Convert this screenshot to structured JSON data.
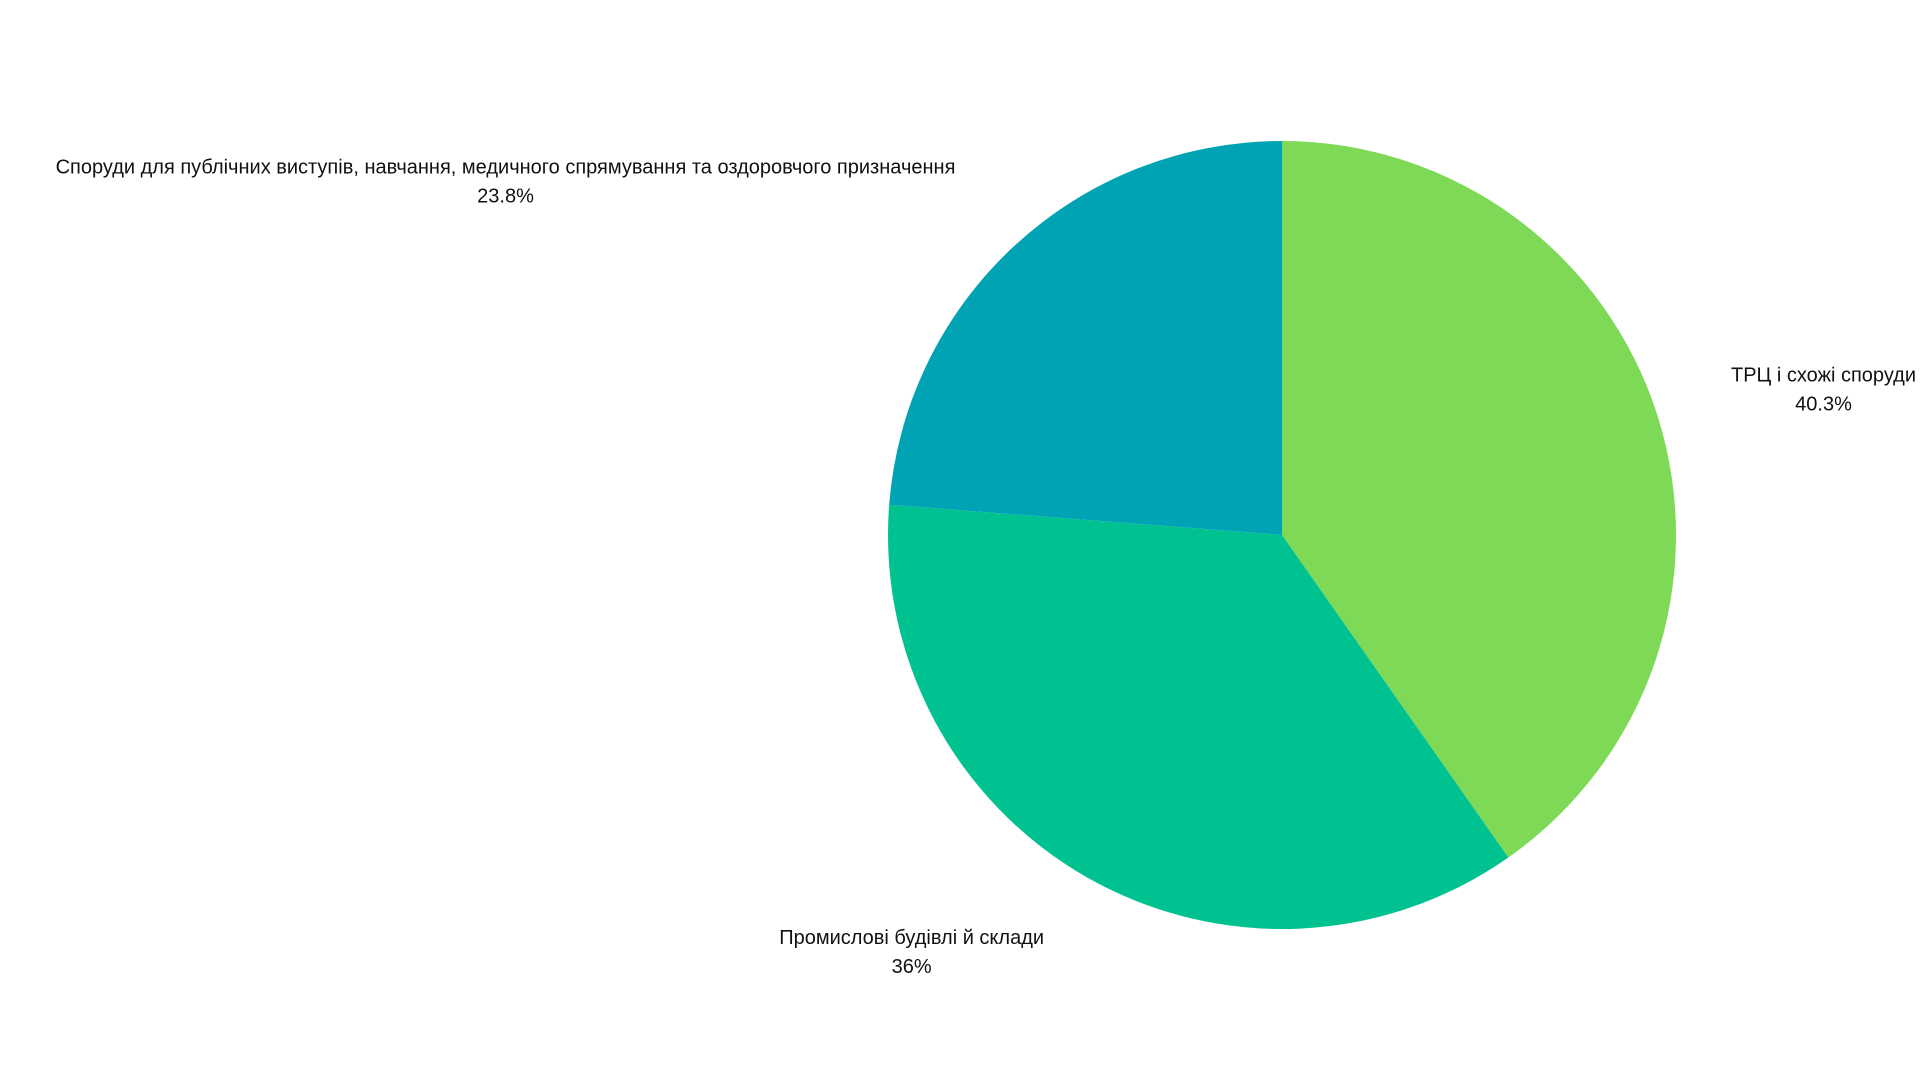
{
  "chart_data": {
    "type": "pie",
    "categories": [
      "ТРЦ і схожі споруди",
      "Промислові будівлі й склади",
      "Споруди для публічних виступів, навчання, медичного спрямування та оздоровчого призначення"
    ],
    "values": [
      40.3,
      36,
      23.8
    ],
    "value_labels": [
      "40.3%",
      "36%",
      "23.8%"
    ],
    "colors": [
      "#7ed957",
      "#00c291",
      "#00a3b4"
    ]
  }
}
